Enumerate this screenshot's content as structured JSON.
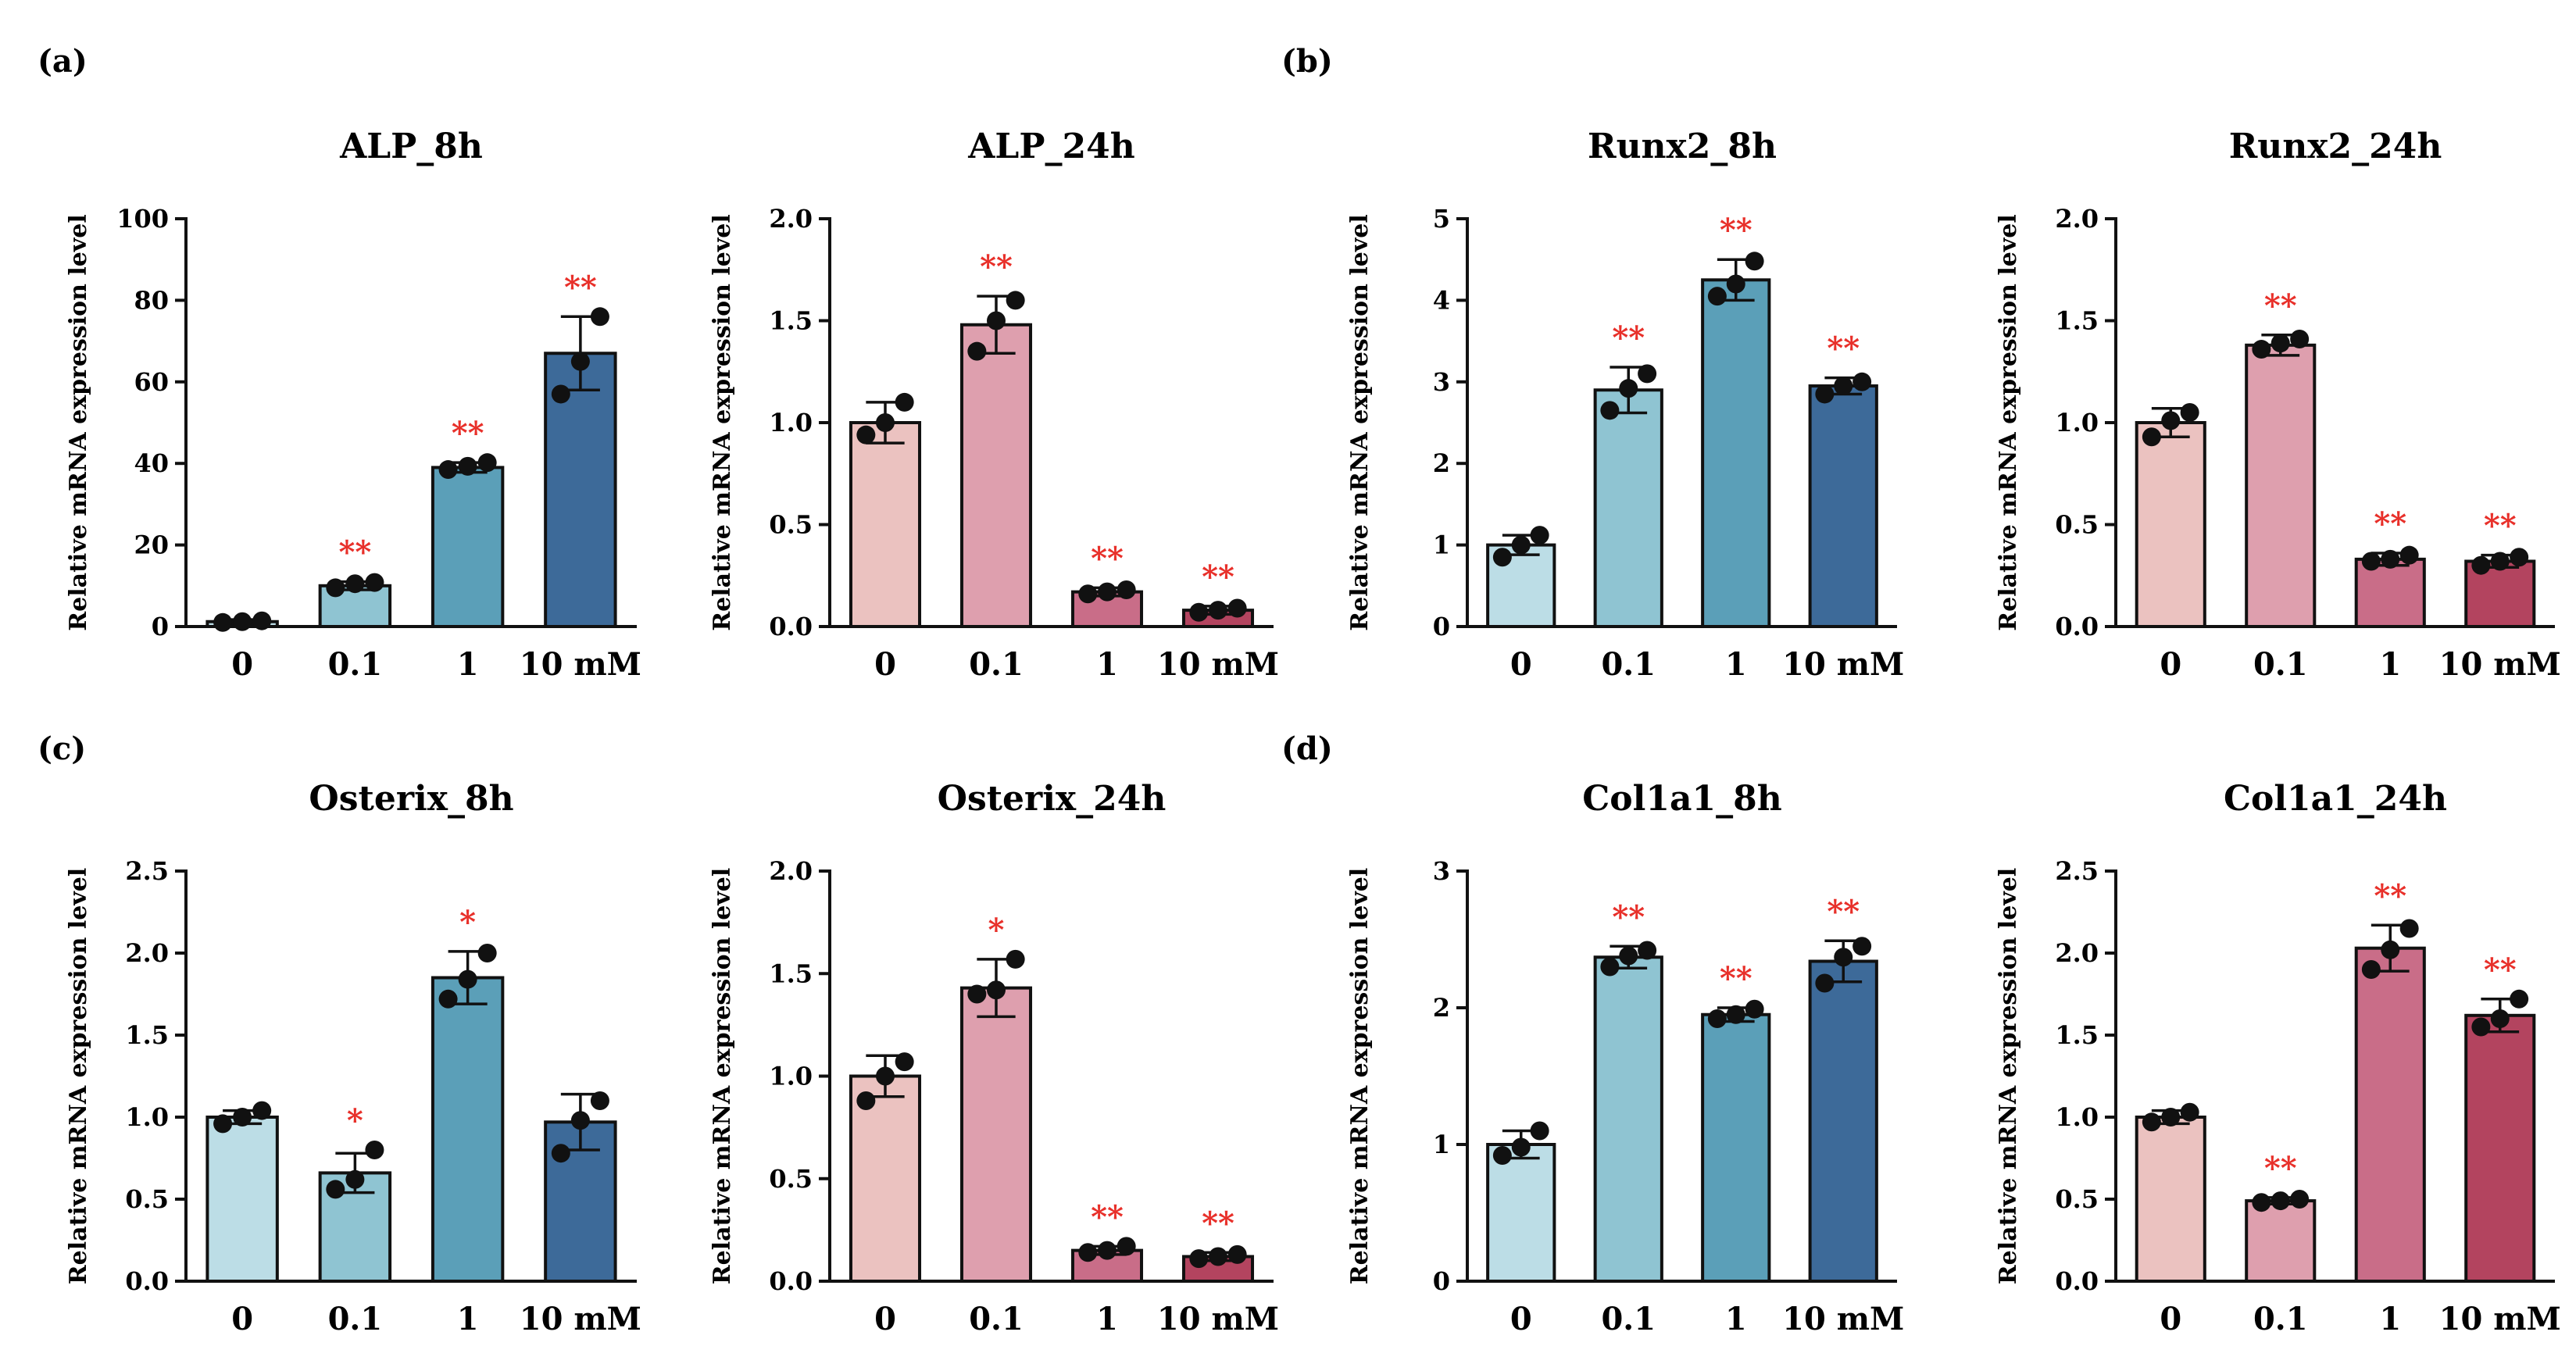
{
  "figure": {
    "panel_letters": [
      "(a)",
      "(b)",
      "(c)",
      "(d)"
    ],
    "significance_color": "#e8302a",
    "axis_color": "#111111",
    "point_color": "#111111"
  },
  "chart_data": [
    {
      "type": "bar",
      "title": "ALP_8h",
      "xlabel": "",
      "ylabel": "Relative mRNA expression level",
      "categories": [
        "0",
        "0.1",
        "1",
        "10 mM"
      ],
      "values": [
        1.2,
        10,
        39,
        67
      ],
      "errors": [
        0.5,
        1.0,
        1.2,
        9.0
      ],
      "points": [
        [
          1.0,
          1.2,
          1.4
        ],
        [
          9.5,
          10.5,
          10.8
        ],
        [
          38.5,
          39.3,
          40.2
        ],
        [
          57,
          65,
          76
        ]
      ],
      "significance": [
        "",
        "**",
        "**",
        "**"
      ],
      "ylim": [
        0,
        100
      ],
      "yticks": [
        "0",
        "20",
        "40",
        "60",
        "80",
        "100"
      ],
      "colors": [
        "#bcdde6",
        "#8fc4d2",
        "#5b9fb8",
        "#3d6a99"
      ]
    },
    {
      "type": "bar",
      "title": "ALP_24h",
      "xlabel": "",
      "ylabel": "Relative mRNA expression level",
      "categories": [
        "0",
        "0.1",
        "1",
        "10 mM"
      ],
      "values": [
        1.0,
        1.48,
        0.17,
        0.08
      ],
      "errors": [
        0.1,
        0.14,
        0.02,
        0.02
      ],
      "points": [
        [
          0.94,
          1.0,
          1.1
        ],
        [
          1.35,
          1.5,
          1.6
        ],
        [
          0.16,
          0.17,
          0.18
        ],
        [
          0.07,
          0.08,
          0.09
        ]
      ],
      "significance": [
        "",
        "**",
        "**",
        "**"
      ],
      "ylim": [
        0,
        2.0
      ],
      "yticks": [
        "0.0",
        "0.5",
        "1.0",
        "1.5",
        "2.0"
      ],
      "colors": [
        "#ebc2c0",
        "#de9fae",
        "#c96d88",
        "#b3445f"
      ]
    },
    {
      "type": "bar",
      "title": "Runx2_8h",
      "xlabel": "",
      "ylabel": "Relative mRNA expression level",
      "categories": [
        "0",
        "0.1",
        "1",
        "10 mM"
      ],
      "values": [
        1.0,
        2.9,
        4.25,
        2.95
      ],
      "errors": [
        0.12,
        0.28,
        0.25,
        0.1
      ],
      "points": [
        [
          0.85,
          1.0,
          1.12
        ],
        [
          2.65,
          2.92,
          3.1
        ],
        [
          4.05,
          4.2,
          4.48
        ],
        [
          2.85,
          2.95,
          3.0
        ]
      ],
      "significance": [
        "",
        "**",
        "**",
        "**"
      ],
      "ylim": [
        0,
        5
      ],
      "yticks": [
        "0",
        "1",
        "2",
        "3",
        "4",
        "5"
      ],
      "colors": [
        "#bcdde6",
        "#8fc4d2",
        "#5b9fb8",
        "#3d6a99"
      ]
    },
    {
      "type": "bar",
      "title": "Runx2_24h",
      "xlabel": "",
      "ylabel": "Relative mRNA expression level",
      "categories": [
        "0",
        "0.1",
        "1",
        "10 mM"
      ],
      "values": [
        1.0,
        1.38,
        0.33,
        0.32
      ],
      "errors": [
        0.07,
        0.05,
        0.03,
        0.03
      ],
      "points": [
        [
          0.93,
          1.01,
          1.05
        ],
        [
          1.36,
          1.39,
          1.41
        ],
        [
          0.32,
          0.33,
          0.35
        ],
        [
          0.3,
          0.32,
          0.34
        ]
      ],
      "significance": [
        "",
        "**",
        "**",
        "**"
      ],
      "ylim": [
        0,
        2.0
      ],
      "yticks": [
        "0.0",
        "0.5",
        "1.0",
        "1.5",
        "2.0"
      ],
      "colors": [
        "#ebc2c0",
        "#de9fae",
        "#c96d88",
        "#b3445f"
      ]
    },
    {
      "type": "bar",
      "title": "Osterix_8h",
      "xlabel": "",
      "ylabel": "Relative mRNA expression level",
      "categories": [
        "0",
        "0.1",
        "1",
        "10 mM"
      ],
      "values": [
        1.0,
        0.66,
        1.85,
        0.97
      ],
      "errors": [
        0.04,
        0.12,
        0.16,
        0.17
      ],
      "points": [
        [
          0.96,
          1.0,
          1.04
        ],
        [
          0.56,
          0.62,
          0.8
        ],
        [
          1.72,
          1.84,
          2.0
        ],
        [
          0.78,
          0.98,
          1.1
        ]
      ],
      "significance": [
        "",
        "*",
        "*",
        ""
      ],
      "ylim": [
        0,
        2.5
      ],
      "yticks": [
        "0.0",
        "0.5",
        "1.0",
        "1.5",
        "2.0",
        "2.5"
      ],
      "colors": [
        "#bcdde6",
        "#8fc4d2",
        "#5b9fb8",
        "#3d6a99"
      ]
    },
    {
      "type": "bar",
      "title": "Osterix_24h",
      "xlabel": "",
      "ylabel": "Relative mRNA expression level",
      "categories": [
        "0",
        "0.1",
        "1",
        "10 mM"
      ],
      "values": [
        1.0,
        1.43,
        0.15,
        0.12
      ],
      "errors": [
        0.1,
        0.14,
        0.02,
        0.02
      ],
      "points": [
        [
          0.88,
          1.0,
          1.07
        ],
        [
          1.4,
          1.42,
          1.57
        ],
        [
          0.14,
          0.15,
          0.17
        ],
        [
          0.11,
          0.12,
          0.13
        ]
      ],
      "significance": [
        "",
        "*",
        "**",
        "**"
      ],
      "ylim": [
        0,
        2.0
      ],
      "yticks": [
        "0.0",
        "0.5",
        "1.0",
        "1.5",
        "2.0"
      ],
      "colors": [
        "#ebc2c0",
        "#de9fae",
        "#c96d88",
        "#b3445f"
      ]
    },
    {
      "type": "bar",
      "title": "Col1a1_8h",
      "xlabel": "",
      "ylabel": "Relative mRNA expression level",
      "categories": [
        "0",
        "0.1",
        "1",
        "10 mM"
      ],
      "values": [
        1.0,
        2.37,
        1.95,
        2.34
      ],
      "errors": [
        0.1,
        0.08,
        0.05,
        0.15
      ],
      "points": [
        [
          0.92,
          0.98,
          1.1
        ],
        [
          2.3,
          2.38,
          2.42
        ],
        [
          1.92,
          1.95,
          1.99
        ],
        [
          2.18,
          2.37,
          2.45
        ]
      ],
      "significance": [
        "",
        "**",
        "**",
        "**"
      ],
      "ylim": [
        0,
        3
      ],
      "yticks": [
        "0",
        "1",
        "2",
        "3"
      ],
      "colors": [
        "#bcdde6",
        "#8fc4d2",
        "#5b9fb8",
        "#3d6a99"
      ]
    },
    {
      "type": "bar",
      "title": "Col1a1_24h",
      "xlabel": "",
      "ylabel": "Relative mRNA expression level",
      "categories": [
        "0",
        "0.1",
        "1",
        "10 mM"
      ],
      "values": [
        1.0,
        0.49,
        2.03,
        1.62
      ],
      "errors": [
        0.04,
        0.02,
        0.14,
        0.1
      ],
      "points": [
        [
          0.97,
          1.0,
          1.03
        ],
        [
          0.48,
          0.49,
          0.5
        ],
        [
          1.9,
          2.02,
          2.15
        ],
        [
          1.55,
          1.6,
          1.72
        ]
      ],
      "significance": [
        "",
        "**",
        "**",
        "**"
      ],
      "ylim": [
        0,
        2.5
      ],
      "yticks": [
        "0.0",
        "0.5",
        "1.0",
        "1.5",
        "2.0",
        "2.5"
      ],
      "colors": [
        "#ebc2c0",
        "#de9fae",
        "#c96d88",
        "#b3445f"
      ]
    }
  ]
}
